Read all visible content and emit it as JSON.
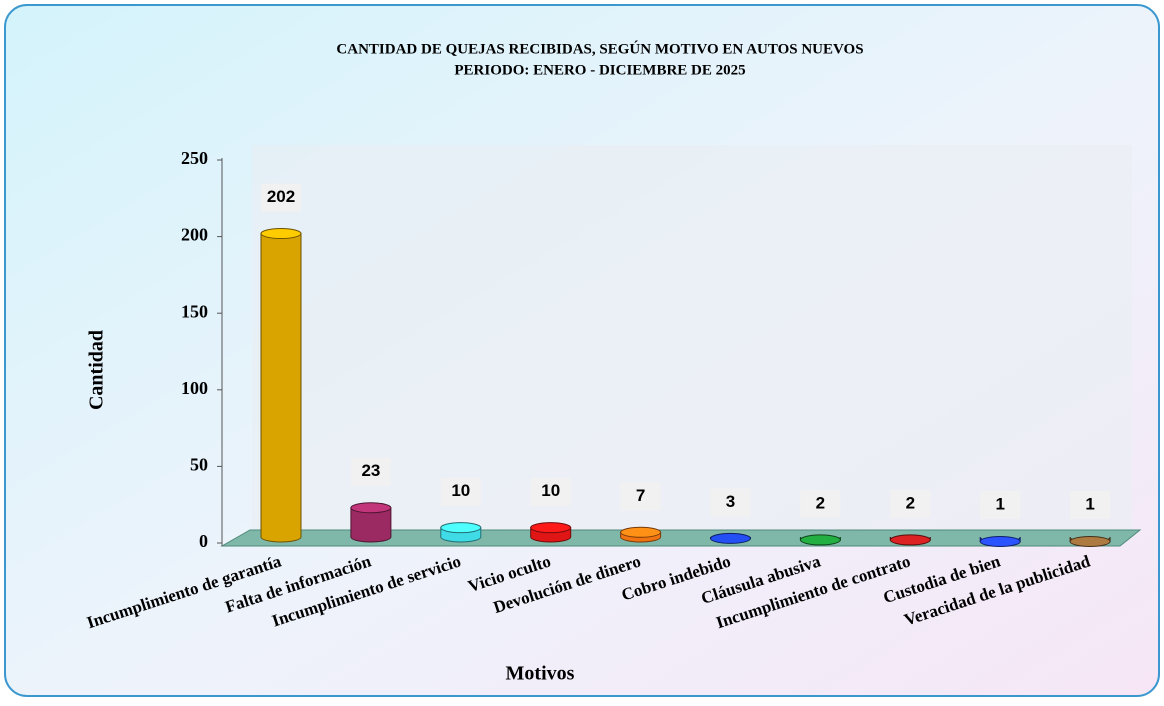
{
  "chart_data": {
    "type": "bar",
    "title": "CANTIDAD DE QUEJAS RECIBIDAS, SEGÚN MOTIVO  EN AUTOS NUEVOS",
    "subtitle": "PERIODO: ENERO - DICIEMBRE DE 2025",
    "y_label": "Cantidad",
    "x_label": "Motivos",
    "categories": [
      "Incumplimiento de garantía",
      "Falta de información",
      "Incumplimiento de servicio",
      "Vicio oculto",
      "Devolución de dinero",
      "Cobro indebido",
      "Cláusula abusiva",
      "Incumplimiento de contrato",
      "Custodia de bien",
      "Veracidad de la publicidad"
    ],
    "values": [
      202,
      23,
      10,
      10,
      7,
      3,
      2,
      2,
      1,
      1
    ],
    "colors": [
      "#d9a300",
      "#9c2a62",
      "#3fdbe6",
      "#e01515",
      "#f07412",
      "#1c3fc4",
      "#1d8c35",
      "#b01b1b",
      "#2242d4",
      "#8a6234"
    ],
    "ylim": [
      0,
      250
    ],
    "yticks": [
      0,
      50,
      100,
      150,
      200,
      250
    ]
  }
}
